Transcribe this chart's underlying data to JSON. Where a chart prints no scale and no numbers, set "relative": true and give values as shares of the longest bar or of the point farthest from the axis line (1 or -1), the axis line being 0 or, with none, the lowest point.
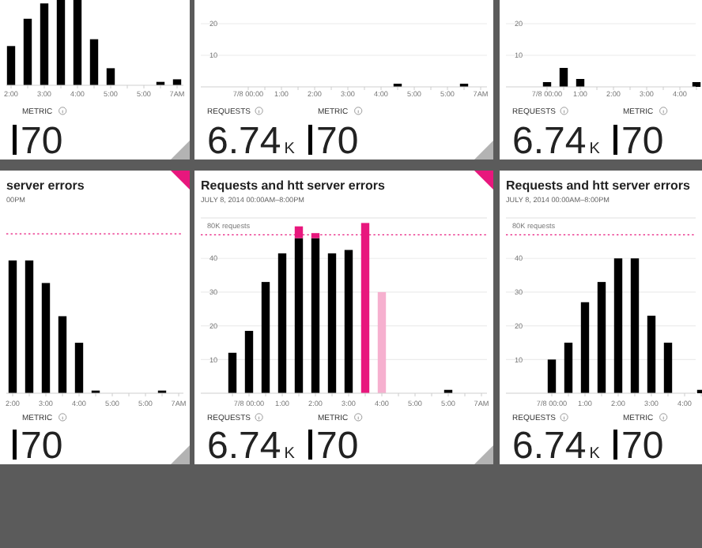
{
  "chart_data": [
    {
      "type": "bar",
      "relative": true,
      "tick_labels": "x",
      "categories": [
        "2:00",
        null,
        "3:00",
        null,
        "4:00",
        null,
        "5:00",
        null,
        "5:00",
        null,
        "7AM"
      ],
      "series": [
        {
          "color": "#000000",
          "values": [
            0.46,
            0.78,
            0.96,
            1,
            1,
            0.54,
            0.2,
            null,
            null,
            0.04,
            0.07
          ]
        }
      ],
      "annotations": [
        "METRIC",
        "70"
      ]
    },
    {
      "type": "bar",
      "categories": [
        "7/8 00:00",
        null,
        "1:00",
        null,
        "2:00",
        null,
        "3:00",
        null,
        "4:00",
        null,
        "5:00",
        null,
        "5:00",
        null,
        "7AM"
      ],
      "series": [
        {
          "color": "#000000",
          "values": [
            null,
            null,
            null,
            null,
            null,
            null,
            null,
            null,
            null,
            1,
            null,
            null,
            null,
            1,
            null
          ]
        }
      ],
      "ylim": [
        0,
        20
      ],
      "yticks": [
        10,
        20
      ],
      "grid": "y",
      "annotations": [
        "REQUESTS",
        "6.74",
        "K",
        "METRIC",
        "70"
      ]
    },
    {
      "type": "bar",
      "categories": [
        "7/8 00:00",
        null,
        "1:00",
        null,
        "2:00",
        null,
        "3:00",
        null,
        "4:00",
        null
      ],
      "series": [
        {
          "color": "#000000",
          "values": [
            1.5,
            6,
            2.5,
            null,
            null,
            null,
            null,
            null,
            null,
            1.5
          ]
        }
      ],
      "ylim": [
        0,
        20
      ],
      "yticks": [
        10,
        20
      ],
      "grid": "y",
      "annotations": [
        "REQUESTS",
        "6.74",
        "K",
        "METRIC",
        "70"
      ]
    },
    {
      "type": "bar",
      "relative": true,
      "tick_labels": "x",
      "title": "server errors",
      "subtitle": "00PM",
      "categories": [
        "2:00",
        null,
        "3:00",
        null,
        "4:00",
        null,
        "5:00",
        null,
        "5:00",
        null,
        "7AM"
      ],
      "series": [
        {
          "color": "#000000",
          "values": [
            1,
            1,
            0.83,
            0.58,
            0.38,
            0.02,
            null,
            null,
            null,
            0.02,
            null
          ]
        }
      ],
      "ref_lines": [
        {
          "axis": "y",
          "value": 1.2,
          "color": "#e8177d",
          "line_style": "dotted"
        }
      ],
      "annotations": [
        "METRIC",
        "70"
      ]
    },
    {
      "type": "bar",
      "stacked": true,
      "title": "Requests and htt server errors",
      "subtitle": "JULY 8, 2014 00:00AM–8:00PM",
      "categories": [
        null,
        "7/8 00:00",
        null,
        "1:00",
        null,
        "2:00",
        null,
        "3:00",
        null,
        "4:00",
        null,
        "5:00",
        null,
        "5:00",
        null,
        "7AM"
      ],
      "series": [
        {
          "color": "#000000",
          "values": [
            12,
            18.5,
            33,
            41.5,
            46,
            46,
            41.5,
            42.5,
            null,
            null,
            null,
            null,
            null,
            1,
            null,
            null
          ]
        },
        {
          "color": "#e8177d",
          "values": [
            null,
            null,
            null,
            null,
            3.5,
            1.5,
            null,
            null,
            50.5,
            null,
            null,
            null,
            null,
            null,
            null,
            null
          ]
        },
        {
          "color": "#f6b0cf",
          "values": [
            null,
            null,
            null,
            null,
            null,
            null,
            null,
            null,
            null,
            30,
            null,
            null,
            null,
            null,
            null,
            null
          ]
        }
      ],
      "ylim": [
        0,
        52
      ],
      "yticks": [
        10,
        20,
        30,
        40
      ],
      "grid": "y",
      "ref_lines": [
        {
          "axis": "y",
          "value": 47,
          "label": "80K requests",
          "color": "#e8177d",
          "line_style": "dotted"
        }
      ],
      "annotations": [
        "REQUESTS",
        "6.74",
        "K",
        "METRIC",
        "70"
      ]
    },
    {
      "type": "bar",
      "title": "Requests and htt server errors",
      "subtitle": "JULY 8, 2014 00:00AM–8:00PM",
      "categories": [
        "7/8 00:00",
        null,
        "1:00",
        null,
        "2:00",
        null,
        "3:00",
        null,
        "4:00",
        null
      ],
      "series": [
        {
          "color": "#000000",
          "values": [
            10,
            15,
            27,
            33,
            40,
            40,
            23,
            15,
            null,
            1
          ]
        }
      ],
      "ylim": [
        0,
        52
      ],
      "yticks": [
        10,
        20,
        30,
        40
      ],
      "grid": "y",
      "ref_lines": [
        {
          "axis": "y",
          "value": 47,
          "label": "80K requests",
          "color": "#e8177d",
          "line_style": "dotted"
        }
      ],
      "annotations": [
        "REQUESTS",
        "6.74",
        "K",
        "METRIC",
        "70"
      ]
    }
  ]
}
